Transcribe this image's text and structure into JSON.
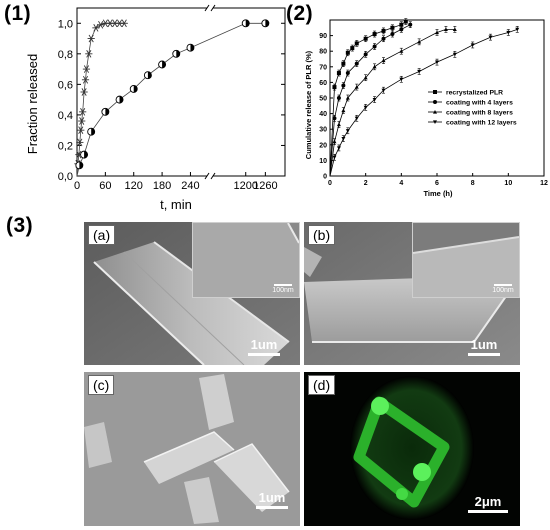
{
  "panel_labels": [
    "(1)",
    "(2)",
    "(3)"
  ],
  "chart_data": [
    {
      "type": "line",
      "ylabel": "Fraction released",
      "xlabel": "t, min",
      "x_ticks": [
        "0",
        "60",
        "120",
        "180",
        "240",
        "1200",
        "1260"
      ],
      "y_ticks": [
        "0,0",
        "0,2",
        "0,4",
        "0,6",
        "0,8",
        "1,0"
      ],
      "ylim": [
        0,
        1.1
      ],
      "x_break": true,
      "grid": false,
      "series": [
        {
          "marker": "asterisk",
          "x": [
            0,
            2,
            4,
            6,
            8,
            10,
            12,
            15,
            18,
            20,
            25,
            30,
            40,
            50,
            60,
            70,
            80,
            90,
            100
          ],
          "y": [
            0,
            0.08,
            0.14,
            0.22,
            0.3,
            0.36,
            0.42,
            0.55,
            0.63,
            0.7,
            0.8,
            0.9,
            0.97,
            0.99,
            1.0,
            1.0,
            1.0,
            1.0,
            1.0
          ]
        },
        {
          "marker": "half-filled-circle",
          "x": [
            0,
            5,
            15,
            30,
            60,
            90,
            120,
            150,
            180,
            210,
            240,
            1200,
            1260
          ],
          "y": [
            0,
            0.07,
            0.14,
            0.29,
            0.42,
            0.5,
            0.57,
            0.66,
            0.73,
            0.8,
            0.84,
            1.0,
            1.0
          ]
        }
      ]
    },
    {
      "type": "line",
      "ylabel": "Cumulative release of PLR (%)",
      "xlabel": "Time (h)",
      "x_ticks": [
        0,
        2,
        4,
        6,
        8,
        10,
        12
      ],
      "y_ticks": [
        0,
        10,
        20,
        30,
        40,
        50,
        60,
        70,
        80,
        90
      ],
      "xlim": [
        0,
        12
      ],
      "ylim": [
        0,
        100
      ],
      "legend_position": "right",
      "grid": false,
      "series": [
        {
          "name": "recrystalized PLR",
          "marker": "square",
          "x": [
            0,
            0.25,
            0.5,
            0.75,
            1,
            1.25,
            1.5,
            2,
            2.5,
            3,
            3.5,
            4,
            4.25
          ],
          "y": [
            0,
            57,
            66,
            72,
            79,
            82,
            85,
            88,
            91,
            93,
            95,
            97,
            99
          ]
        },
        {
          "name": "coating with 4 layers",
          "marker": "circle",
          "x": [
            0,
            0.25,
            0.5,
            0.75,
            1,
            1.5,
            2,
            2.5,
            3,
            3.5,
            4,
            4.5
          ],
          "y": [
            0,
            37,
            50,
            58,
            66,
            72,
            78,
            83,
            88,
            91,
            94,
            97
          ]
        },
        {
          "name": "coating with 8 layers",
          "marker": "triangle-up",
          "x": [
            0,
            0.25,
            0.5,
            0.75,
            1,
            1.5,
            2,
            2.5,
            3,
            4,
            5,
            6,
            6.5,
            7
          ],
          "y": [
            0,
            22,
            33,
            42,
            50,
            57,
            63,
            70,
            74,
            80,
            86,
            92,
            94,
            94
          ]
        },
        {
          "name": "coating with 12 layers",
          "marker": "triangle-down",
          "x": [
            0,
            0.25,
            0.5,
            0.75,
            1,
            1.5,
            2,
            2.5,
            3,
            4,
            5,
            6,
            7,
            8,
            9,
            10,
            10.5
          ],
          "y": [
            0,
            12,
            18,
            24,
            29,
            37,
            44,
            49,
            55,
            62,
            67,
            73,
            78,
            84,
            89,
            92,
            94
          ]
        }
      ]
    }
  ],
  "micrographs": [
    {
      "label": "(a)",
      "scale": "1um",
      "inset_scale": "100nm"
    },
    {
      "label": "(b)",
      "scale": "1um",
      "inset_scale": "100nm"
    },
    {
      "label": "(c)",
      "scale": "1um"
    },
    {
      "label": "(d)",
      "scale": "2μm"
    }
  ]
}
